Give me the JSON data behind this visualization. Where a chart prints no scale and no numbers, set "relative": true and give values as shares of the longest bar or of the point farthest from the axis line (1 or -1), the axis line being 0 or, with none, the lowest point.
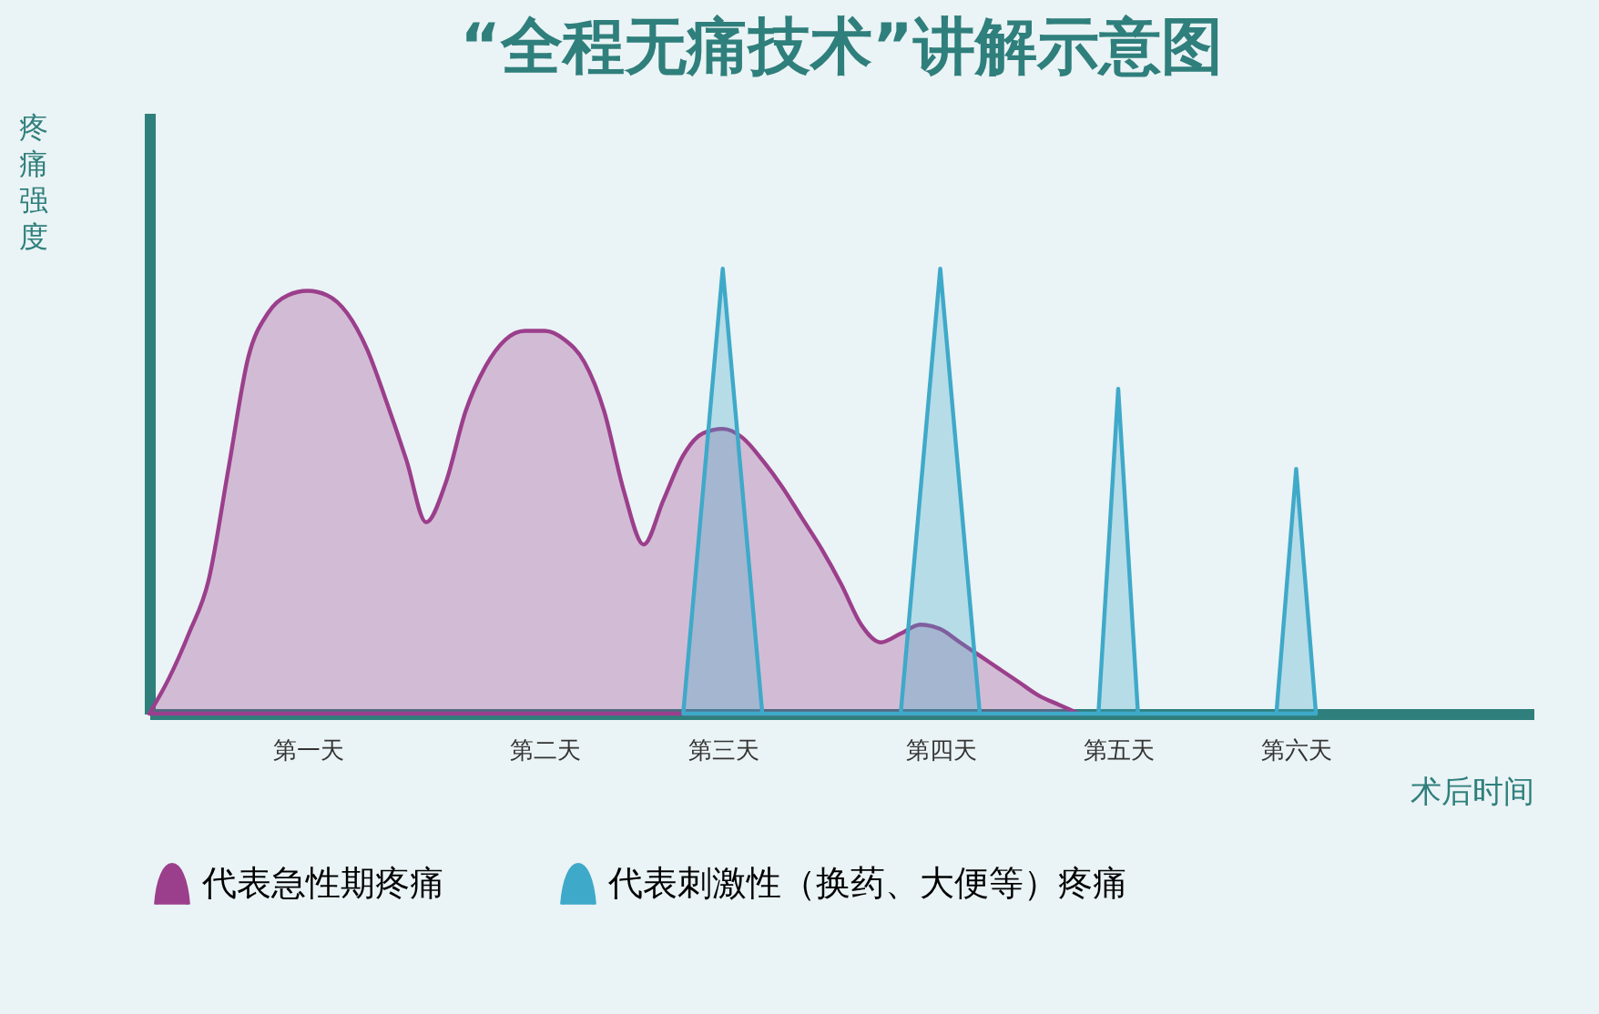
{
  "chart_data": {
    "type": "area",
    "title": "“全程无痛技术”讲解示意图",
    "xlabel": "术后时间",
    "ylabel": "疼痛强度",
    "relative": true,
    "categories": [
      null,
      null,
      null,
      null,
      null,
      null,
      null,
      null,
      "第一天",
      null,
      null,
      null,
      null,
      null,
      null,
      null,
      null,
      null,
      null,
      null,
      "第二天",
      null,
      null,
      null,
      null,
      null,
      null,
      null,
      null,
      "第三天",
      null,
      null,
      null,
      null,
      null,
      null,
      null,
      null,
      null,
      null,
      "第四天",
      null,
      null,
      null,
      null,
      null,
      null,
      null,
      null,
      "第五天",
      null,
      null,
      null,
      null,
      null,
      null,
      null,
      null,
      "第六天",
      null,
      null,
      null,
      null,
      null,
      null,
      null,
      null,
      null,
      null,
      null,
      null
    ],
    "series": [
      {
        "name": "代表急性期疼痛",
        "color": "#9b3f8c",
        "values": [
          0,
          0.08,
          0.18,
          0.3,
          0.55,
          0.8,
          0.9,
          0.94,
          0.95,
          0.94,
          0.9,
          0.82,
          0.7,
          0.57,
          0.43,
          0.52,
          0.68,
          0.78,
          0.84,
          0.86,
          0.86,
          0.84,
          0.79,
          0.68,
          0.5,
          0.38,
          0.48,
          0.58,
          0.63,
          0.64,
          0.62,
          0.57,
          0.51,
          0.44,
          0.37,
          0.29,
          0.2,
          0.16,
          0.18,
          0.2,
          0.19,
          0.16,
          0.13,
          0.1,
          0.07,
          0.04,
          0.02,
          0,
          null,
          null,
          null,
          null,
          null,
          null,
          null,
          null,
          null,
          null,
          null,
          null,
          null,
          null,
          null,
          null,
          null,
          null,
          null,
          null,
          null,
          null,
          null
        ]
      },
      {
        "name": "代表刺激性（换药、大便等）疼痛",
        "color": "#3fa9c9",
        "values": [
          null,
          null,
          null,
          null,
          null,
          null,
          null,
          null,
          null,
          null,
          null,
          null,
          null,
          null,
          null,
          null,
          null,
          null,
          null,
          null,
          null,
          null,
          null,
          null,
          null,
          null,
          null,
          0,
          0.5,
          1,
          0.5,
          0,
          0,
          0,
          0,
          0,
          0,
          0,
          0,
          0.5,
          1,
          0.5,
          0,
          0,
          0,
          0,
          0,
          0,
          0,
          0.73,
          0,
          0,
          0,
          0,
          0,
          0,
          0,
          0,
          0.55,
          0,
          null,
          null,
          null,
          null,
          null,
          null,
          null,
          null,
          null,
          null,
          null
        ]
      }
    ],
    "legend": "bottom"
  }
}
